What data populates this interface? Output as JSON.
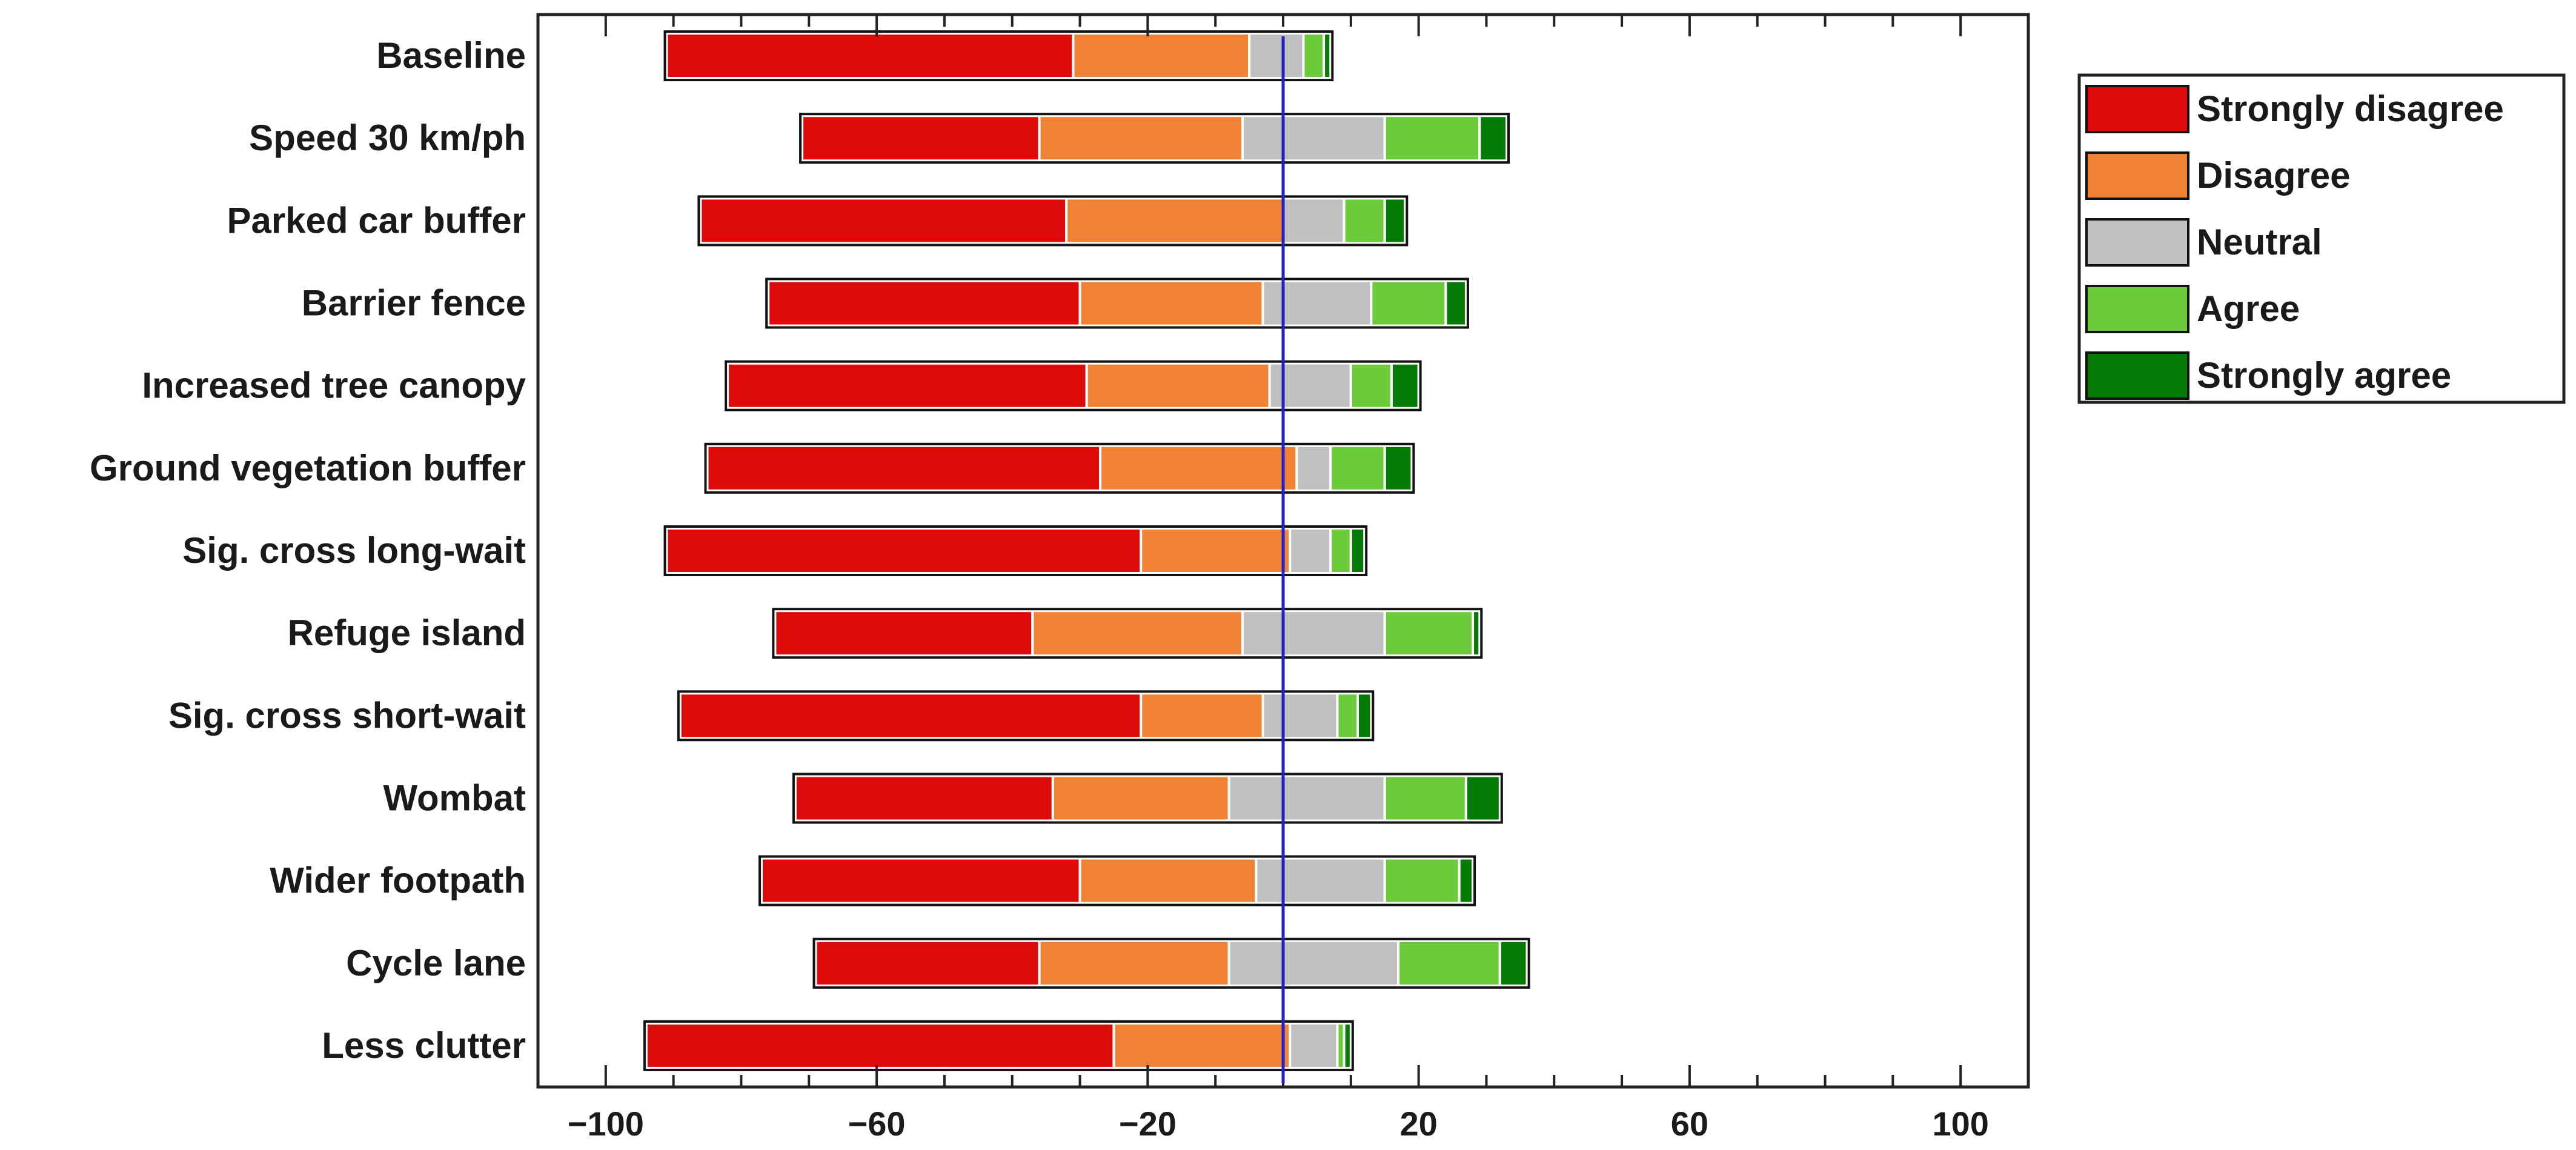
{
  "chart_data": {
    "type": "bar",
    "orientation": "horizontal",
    "stacked": "diverging",
    "title": "",
    "xlabel": "",
    "ylabel": "",
    "xlim": [
      -110,
      110
    ],
    "xticks": [
      -100,
      -60,
      -20,
      20,
      60,
      100
    ],
    "xtick_labels": [
      "−100",
      "−60",
      "−20",
      "20",
      "60",
      "100"
    ],
    "reference_line_x": 0,
    "reference_line_color": "#1f1fcc",
    "grid": false,
    "legend_position": "top-right",
    "categories": [
      "Baseline",
      "Speed 30 km/ph",
      "Parked car buffer",
      "Barrier fence",
      "Increased tree canopy",
      "Ground vegetation buffer",
      "Sig. cross long-wait",
      "Refuge island",
      "Sig. cross short-wait",
      "Wombat",
      "Wider footpath",
      "Cycle lane",
      "Less clutter"
    ],
    "series": [
      {
        "name": "Strongly disagree",
        "color": "#dd0a0a",
        "values": [
          60,
          35,
          54,
          46,
          53,
          58,
          70,
          38,
          68,
          38,
          47,
          33,
          69
        ]
      },
      {
        "name": "Disagree",
        "color": "#ef8235",
        "values": [
          26,
          30,
          32,
          27,
          27,
          29,
          22,
          31,
          18,
          26,
          26,
          28,
          26
        ]
      },
      {
        "name": "Neutral",
        "color": "#c0c0c0",
        "values": [
          8,
          21,
          9,
          16,
          12,
          5,
          6,
          21,
          11,
          23,
          19,
          25,
          7
        ]
      },
      {
        "name": "Agree",
        "color": "#6bcb3a",
        "values": [
          3,
          14,
          6,
          11,
          6,
          8,
          3,
          13,
          3,
          12,
          11,
          15,
          1
        ]
      },
      {
        "name": "Strongly agree",
        "color": "#057a05",
        "values": [
          1,
          4,
          3,
          3,
          4,
          4,
          2,
          1,
          2,
          5,
          2,
          4,
          1
        ]
      }
    ],
    "bar_starts": [
      -91,
      -71,
      -86,
      -76,
      -82,
      -85,
      -91,
      -75,
      -89,
      -72,
      -77,
      -69,
      -94
    ]
  }
}
